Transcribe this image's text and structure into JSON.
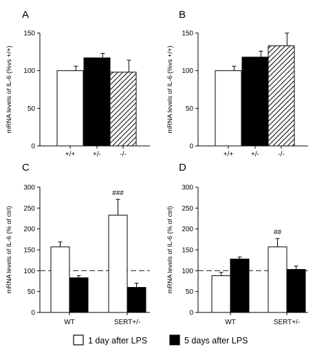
{
  "chart_data": [
    {
      "panel": "A",
      "type": "bar",
      "ylabel": "mRNA levels of IL-6 (%vs +/+)",
      "ylim": [
        0,
        150
      ],
      "yticks": [
        0,
        50,
        100,
        150
      ],
      "categories": [
        "+/+",
        "+/-",
        "-/-"
      ],
      "values": [
        100,
        117,
        98
      ],
      "errors": [
        6,
        6,
        16
      ],
      "bar_styles": [
        "white",
        "black",
        "hatched"
      ],
      "dashed_line": null,
      "annotations": []
    },
    {
      "panel": "B",
      "type": "bar",
      "ylabel": "mRNA levels of IL-6 (%vs +/+)",
      "ylim": [
        0,
        150
      ],
      "yticks": [
        0,
        50,
        100,
        150
      ],
      "categories": [
        "+/+",
        "+/-",
        "-/-"
      ],
      "values": [
        100,
        118,
        133
      ],
      "errors": [
        6,
        8,
        17
      ],
      "bar_styles": [
        "white",
        "black",
        "hatched"
      ],
      "dashed_line": null,
      "annotations": []
    },
    {
      "panel": "C",
      "type": "bar",
      "ylabel": "mRNA levels of IL-6 (% of ctrl)",
      "ylim": [
        0,
        300
      ],
      "yticks": [
        0,
        50,
        100,
        150,
        200,
        250,
        300
      ],
      "categories": [
        "WT",
        "SERT+/-"
      ],
      "series": [
        {
          "name": "1 day after LPS",
          "color": "#ffffff",
          "values": [
            157,
            233
          ],
          "errors": [
            12,
            38
          ]
        },
        {
          "name": "5 days after LPS",
          "color": "#000000",
          "values": [
            83,
            60
          ],
          "errors": [
            5,
            10
          ]
        }
      ],
      "dashed_line": 100,
      "annotations": [
        {
          "category": "SERT+/-",
          "series": 0,
          "text": "###"
        }
      ]
    },
    {
      "panel": "D",
      "type": "bar",
      "ylabel": "mRNA levels of IL-6 (% of ctrl)",
      "ylim": [
        0,
        300
      ],
      "yticks": [
        0,
        50,
        100,
        150,
        200,
        250,
        300
      ],
      "categories": [
        "WT",
        "SERT+/-"
      ],
      "series": [
        {
          "name": "1 day after LPS",
          "color": "#ffffff",
          "values": [
            88,
            157
          ],
          "errors": [
            8,
            20
          ]
        },
        {
          "name": "5 days after LPS",
          "color": "#000000",
          "values": [
            128,
            103
          ],
          "errors": [
            5,
            8
          ]
        }
      ],
      "dashed_line": 100,
      "annotations": [
        {
          "category": "SERT+/-",
          "series": 0,
          "text": "##"
        }
      ]
    }
  ],
  "legend": [
    {
      "label": "1 day after LPS",
      "color": "#ffffff"
    },
    {
      "label": "5 days after LPS",
      "color": "#000000"
    }
  ]
}
